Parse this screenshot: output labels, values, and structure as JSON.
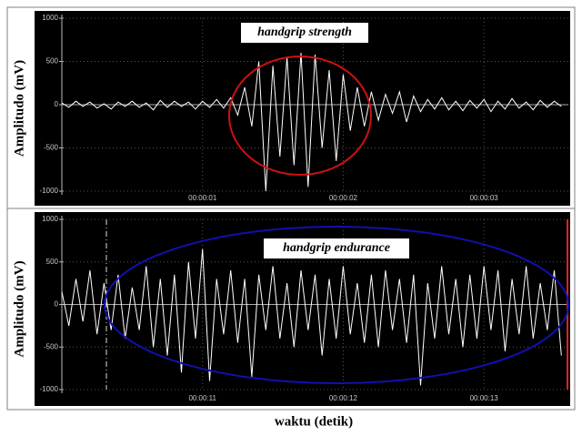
{
  "chart_data": [
    {
      "type": "line",
      "annotation": "handgrip strength",
      "y_label": "Amplitudo (mV)",
      "color": "#ffffff",
      "annotation_color": "#d01010",
      "xlim": [
        0,
        3.6
      ],
      "xticks": [
        {
          "value": 1,
          "label": "00:00:01"
        },
        {
          "value": 2,
          "label": "00:00:02"
        },
        {
          "value": 3,
          "label": "00:00:03"
        }
      ],
      "ylim": [
        -1000,
        1000
      ],
      "yticks": [
        -1000,
        -500,
        0,
        500,
        1000
      ],
      "grid": true,
      "x": [
        0,
        0.05,
        0.1,
        0.15,
        0.2,
        0.25,
        0.3,
        0.35,
        0.4,
        0.45,
        0.5,
        0.55,
        0.6,
        0.65,
        0.7,
        0.75,
        0.8,
        0.85,
        0.9,
        0.95,
        1,
        1.05,
        1.1,
        1.15,
        1.2,
        1.25,
        1.3,
        1.35,
        1.4,
        1.45,
        1.5,
        1.55,
        1.6,
        1.65,
        1.7,
        1.75,
        1.8,
        1.85,
        1.9,
        1.95,
        2,
        2.05,
        2.1,
        2.15,
        2.2,
        2.25,
        2.3,
        2.35,
        2.4,
        2.45,
        2.5,
        2.55,
        2.6,
        2.65,
        2.7,
        2.75,
        2.8,
        2.85,
        2.9,
        2.95,
        3,
        3.05,
        3.1,
        3.15,
        3.2,
        3.25,
        3.3,
        3.35,
        3.4,
        3.45,
        3.5,
        3.55
      ],
      "values": [
        20,
        -30,
        40,
        -20,
        30,
        -40,
        10,
        -50,
        30,
        -20,
        40,
        -30,
        20,
        -60,
        50,
        -30,
        40,
        -20,
        30,
        -50,
        40,
        -30,
        60,
        -40,
        80,
        -120,
        200,
        -250,
        500,
        -1000,
        450,
        -600,
        550,
        -700,
        600,
        -950,
        580,
        -500,
        400,
        -650,
        350,
        -300,
        200,
        -250,
        150,
        -180,
        120,
        -100,
        150,
        -200,
        100,
        -80,
        60,
        -50,
        80,
        -60,
        40,
        -70,
        50,
        -40,
        60,
        -80,
        40,
        -50,
        70,
        -40,
        30,
        -60,
        50,
        -30,
        40,
        -20
      ]
    },
    {
      "type": "line",
      "annotation": "handgrip endurance",
      "y_label": "Amplitudo (mV)",
      "x_label": "waktu (detik)",
      "color": "#ffffff",
      "annotation_color": "#1010b0",
      "xlim": [
        10,
        13.6
      ],
      "xticks": [
        {
          "value": 11,
          "label": "00:00:11"
        },
        {
          "value": 12,
          "label": "00:00:12"
        },
        {
          "value": 13,
          "label": "00:00:13"
        }
      ],
      "ylim": [
        -1000,
        1000
      ],
      "yticks": [
        -1000,
        -500,
        0,
        500,
        1000
      ],
      "grid": true,
      "x": [
        10,
        10.05,
        10.1,
        10.15,
        10.2,
        10.25,
        10.3,
        10.35,
        10.4,
        10.45,
        10.5,
        10.55,
        10.6,
        10.65,
        10.7,
        10.75,
        10.8,
        10.85,
        10.9,
        10.95,
        11,
        11.05,
        11.1,
        11.15,
        11.2,
        11.25,
        11.3,
        11.35,
        11.4,
        11.45,
        11.5,
        11.55,
        11.6,
        11.65,
        11.7,
        11.75,
        11.8,
        11.85,
        11.9,
        11.95,
        12,
        12.05,
        12.1,
        12.15,
        12.2,
        12.25,
        12.3,
        12.35,
        12.4,
        12.45,
        12.5,
        12.55,
        12.6,
        12.65,
        12.7,
        12.75,
        12.8,
        12.85,
        12.9,
        12.95,
        13,
        13.05,
        13.1,
        13.15,
        13.2,
        13.25,
        13.3,
        13.35,
        13.4,
        13.45,
        13.5,
        13.55
      ],
      "values": [
        150,
        -250,
        300,
        -200,
        400,
        -350,
        250,
        -300,
        350,
        -400,
        200,
        -300,
        450,
        -500,
        300,
        -600,
        350,
        -800,
        500,
        -400,
        650,
        -900,
        300,
        -350,
        400,
        -450,
        300,
        -850,
        350,
        -300,
        450,
        -400,
        250,
        -500,
        400,
        -300,
        350,
        -600,
        300,
        -400,
        450,
        -350,
        250,
        -450,
        350,
        -500,
        400,
        -300,
        300,
        -450,
        350,
        -950,
        250,
        -400,
        450,
        -350,
        300,
        -500,
        350,
        -400,
        450,
        -300,
        400,
        -550,
        300,
        -350,
        450,
        -400,
        250,
        -300,
        400,
        -600
      ]
    }
  ]
}
